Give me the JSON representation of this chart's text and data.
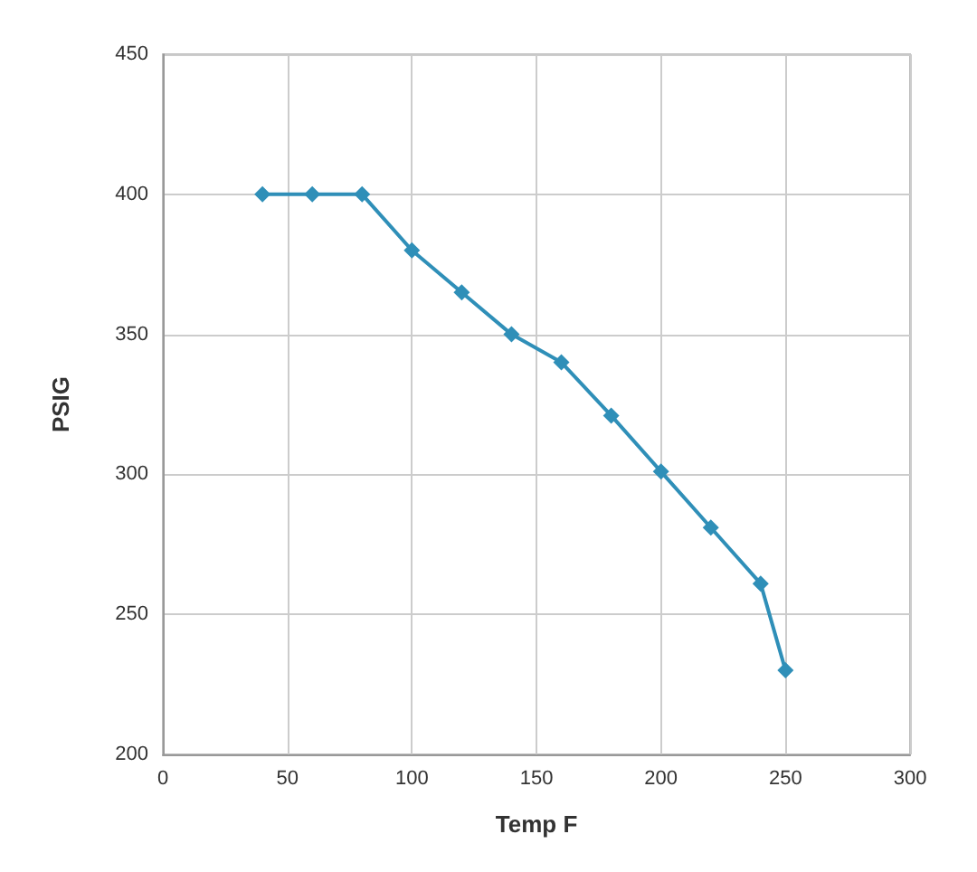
{
  "chart_data": {
    "type": "line",
    "xlabel": "Temp F",
    "ylabel": "PSIG",
    "x": [
      40,
      60,
      80,
      100,
      120,
      140,
      160,
      180,
      200,
      220,
      240,
      250
    ],
    "series": [
      {
        "color": "#2f8fb8",
        "values": [
          400,
          400,
          400,
          380,
          365,
          350,
          340,
          321,
          301,
          281,
          261,
          230
        ]
      }
    ],
    "xlim": [
      0,
      300
    ],
    "xticks": [
      0,
      50,
      100,
      150,
      200,
      250,
      300
    ],
    "ylim": [
      200,
      450
    ],
    "yticks": [
      200,
      250,
      300,
      350,
      400,
      450
    ],
    "grid": true,
    "marker": "diamond",
    "line_style": "solid"
  }
}
